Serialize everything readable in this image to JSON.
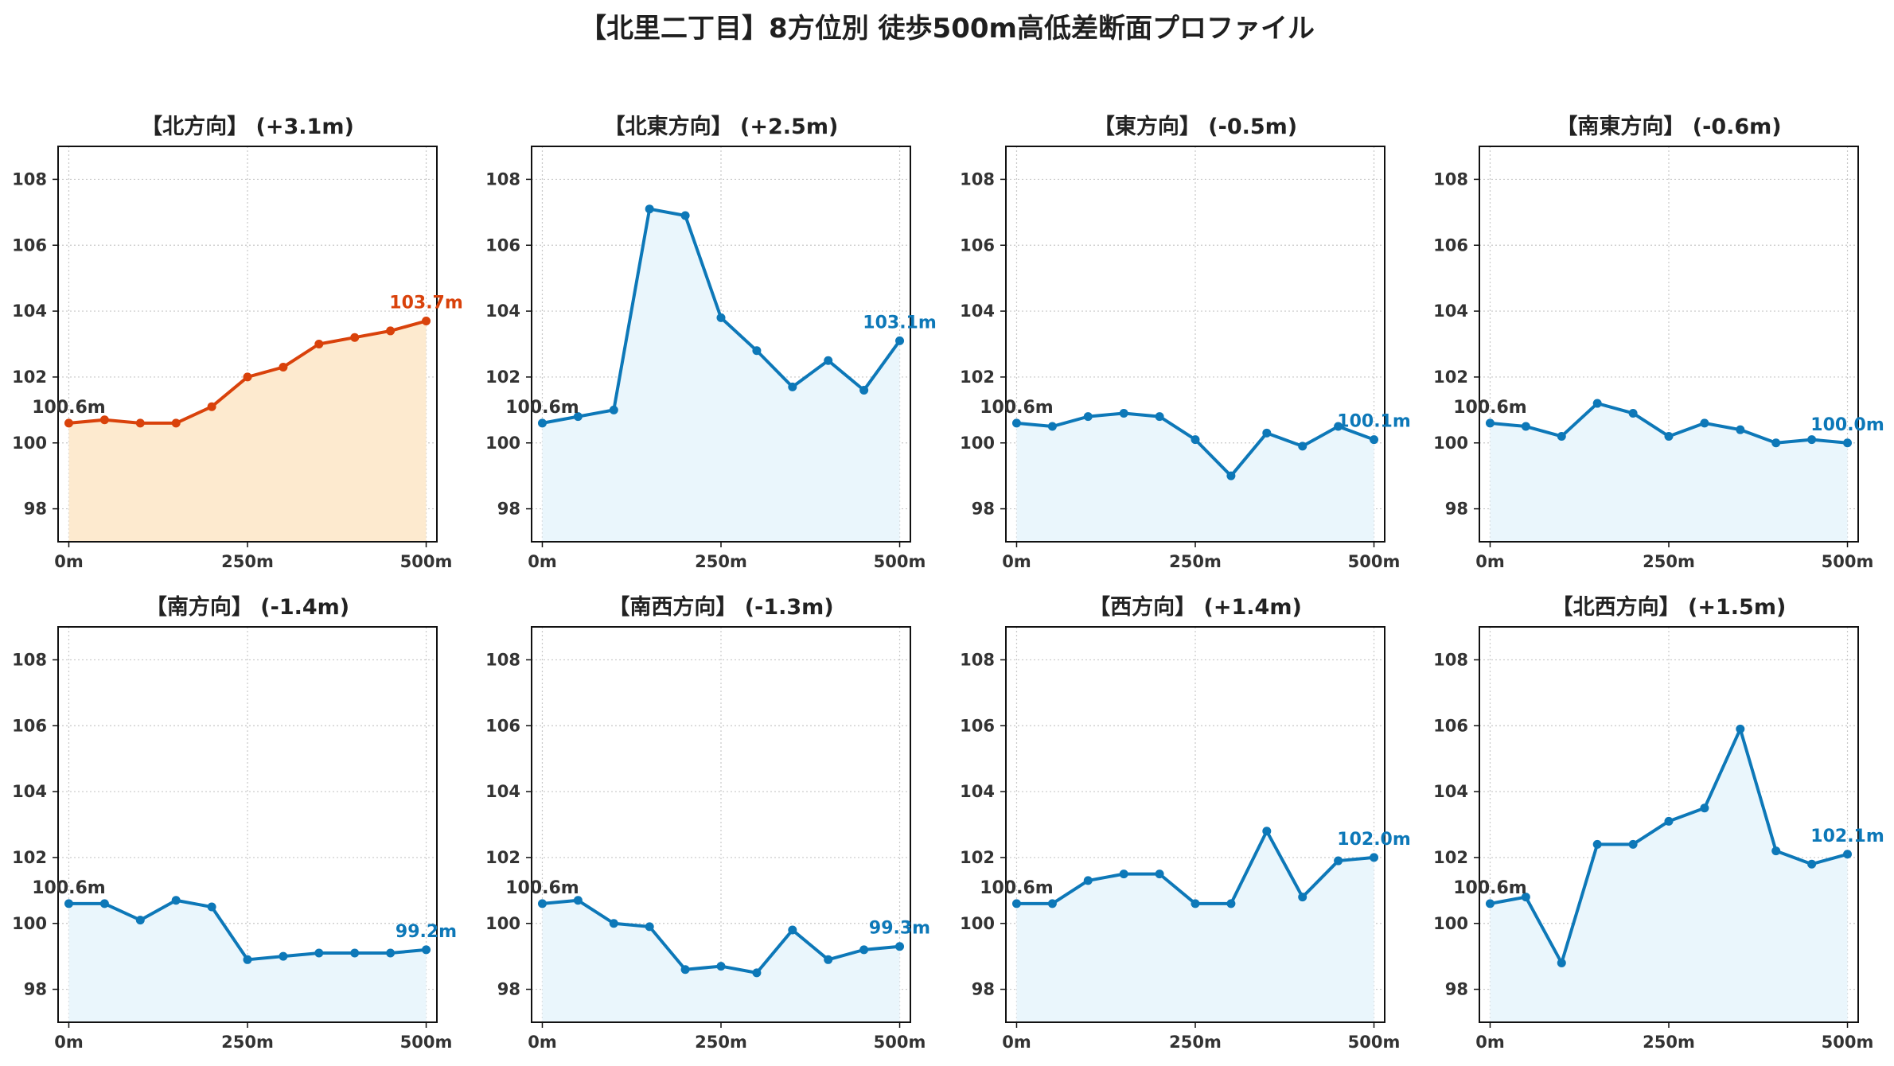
{
  "title": "【北里二丁目】8方位別 徒歩500m高低差断面プロファイル",
  "colors": {
    "uphill_line": "#d9420b",
    "uphill_fill": "#fdeacf",
    "normal_line": "#0d78b8",
    "normal_fill": "#eaf6fc",
    "start_label": "#333333",
    "grid": "#c8c8c8"
  },
  "chart_data": [
    {
      "type": "area",
      "title": "【北方向】 (+3.1m)",
      "highlight": true,
      "x": [
        0,
        50,
        100,
        150,
        200,
        250,
        300,
        350,
        400,
        450,
        500
      ],
      "y": [
        100.6,
        100.7,
        100.6,
        100.6,
        101.1,
        102.0,
        102.3,
        103.0,
        103.2,
        103.4,
        103.7
      ],
      "start_label": "100.6m",
      "end_label": "103.7m",
      "xlim": [
        -15,
        515
      ],
      "ylim": [
        97,
        109
      ],
      "xticks": [
        0,
        250,
        500
      ],
      "xtick_labels": [
        "0m",
        "250m",
        "500m"
      ],
      "yticks": [
        98,
        100,
        102,
        104,
        106,
        108
      ],
      "grid": true
    },
    {
      "type": "area",
      "title": "【北東方向】 (+2.5m)",
      "highlight": false,
      "x": [
        0,
        50,
        100,
        150,
        200,
        250,
        300,
        350,
        400,
        450,
        500
      ],
      "y": [
        100.6,
        100.8,
        101.0,
        107.1,
        106.9,
        103.8,
        102.8,
        101.7,
        102.5,
        101.6,
        103.1
      ],
      "start_label": "100.6m",
      "end_label": "103.1m",
      "xlim": [
        -15,
        515
      ],
      "ylim": [
        97,
        109
      ],
      "xticks": [
        0,
        250,
        500
      ],
      "xtick_labels": [
        "0m",
        "250m",
        "500m"
      ],
      "yticks": [
        98,
        100,
        102,
        104,
        106,
        108
      ],
      "grid": true
    },
    {
      "type": "area",
      "title": "【東方向】 (-0.5m)",
      "highlight": false,
      "x": [
        0,
        50,
        100,
        150,
        200,
        250,
        300,
        350,
        400,
        450,
        500
      ],
      "y": [
        100.6,
        100.5,
        100.8,
        100.9,
        100.8,
        100.1,
        99.0,
        100.3,
        99.9,
        100.5,
        100.1
      ],
      "start_label": "100.6m",
      "end_label": "100.1m",
      "xlim": [
        -15,
        515
      ],
      "ylim": [
        97,
        109
      ],
      "xticks": [
        0,
        250,
        500
      ],
      "xtick_labels": [
        "0m",
        "250m",
        "500m"
      ],
      "yticks": [
        98,
        100,
        102,
        104,
        106,
        108
      ],
      "grid": true
    },
    {
      "type": "area",
      "title": "【南東方向】 (-0.6m)",
      "highlight": false,
      "x": [
        0,
        50,
        100,
        150,
        200,
        250,
        300,
        350,
        400,
        450,
        500
      ],
      "y": [
        100.6,
        100.5,
        100.2,
        101.2,
        100.9,
        100.2,
        100.6,
        100.4,
        100.0,
        100.1,
        100.0
      ],
      "start_label": "100.6m",
      "end_label": "100.0m",
      "xlim": [
        -15,
        515
      ],
      "ylim": [
        97,
        109
      ],
      "xticks": [
        0,
        250,
        500
      ],
      "xtick_labels": [
        "0m",
        "250m",
        "500m"
      ],
      "yticks": [
        98,
        100,
        102,
        104,
        106,
        108
      ],
      "grid": true
    },
    {
      "type": "area",
      "title": "【南方向】 (-1.4m)",
      "highlight": false,
      "x": [
        0,
        50,
        100,
        150,
        200,
        250,
        300,
        350,
        400,
        450,
        500
      ],
      "y": [
        100.6,
        100.6,
        100.1,
        100.7,
        100.5,
        98.9,
        99.0,
        99.1,
        99.1,
        99.1,
        99.2
      ],
      "start_label": "100.6m",
      "end_label": "99.2m",
      "xlim": [
        -15,
        515
      ],
      "ylim": [
        97,
        109
      ],
      "xticks": [
        0,
        250,
        500
      ],
      "xtick_labels": [
        "0m",
        "250m",
        "500m"
      ],
      "yticks": [
        98,
        100,
        102,
        104,
        106,
        108
      ],
      "grid": true
    },
    {
      "type": "area",
      "title": "【南西方向】 (-1.3m)",
      "highlight": false,
      "x": [
        0,
        50,
        100,
        150,
        200,
        250,
        300,
        350,
        400,
        450,
        500
      ],
      "y": [
        100.6,
        100.7,
        100.0,
        99.9,
        98.6,
        98.7,
        98.5,
        99.8,
        98.9,
        99.2,
        99.3
      ],
      "start_label": "100.6m",
      "end_label": "99.3m",
      "xlim": [
        -15,
        515
      ],
      "ylim": [
        97,
        109
      ],
      "xticks": [
        0,
        250,
        500
      ],
      "xtick_labels": [
        "0m",
        "250m",
        "500m"
      ],
      "yticks": [
        98,
        100,
        102,
        104,
        106,
        108
      ],
      "grid": true
    },
    {
      "type": "area",
      "title": "【西方向】 (+1.4m)",
      "highlight": false,
      "x": [
        0,
        50,
        100,
        150,
        200,
        250,
        300,
        350,
        400,
        450,
        500
      ],
      "y": [
        100.6,
        100.6,
        101.3,
        101.5,
        101.5,
        100.6,
        100.6,
        102.8,
        100.8,
        101.9,
        102.0
      ],
      "start_label": "100.6m",
      "end_label": "102.0m",
      "xlim": [
        -15,
        515
      ],
      "ylim": [
        97,
        109
      ],
      "xticks": [
        0,
        250,
        500
      ],
      "xtick_labels": [
        "0m",
        "250m",
        "500m"
      ],
      "yticks": [
        98,
        100,
        102,
        104,
        106,
        108
      ],
      "grid": true
    },
    {
      "type": "area",
      "title": "【北西方向】 (+1.5m)",
      "highlight": false,
      "x": [
        0,
        50,
        100,
        150,
        200,
        250,
        300,
        350,
        400,
        450,
        500
      ],
      "y": [
        100.6,
        100.8,
        98.8,
        102.4,
        102.4,
        103.1,
        103.5,
        105.9,
        102.2,
        101.8,
        102.1
      ],
      "start_label": "100.6m",
      "end_label": "102.1m",
      "xlim": [
        -15,
        515
      ],
      "ylim": [
        97,
        109
      ],
      "xticks": [
        0,
        250,
        500
      ],
      "xtick_labels": [
        "0m",
        "250m",
        "500m"
      ],
      "yticks": [
        98,
        100,
        102,
        104,
        106,
        108
      ],
      "grid": true
    }
  ]
}
